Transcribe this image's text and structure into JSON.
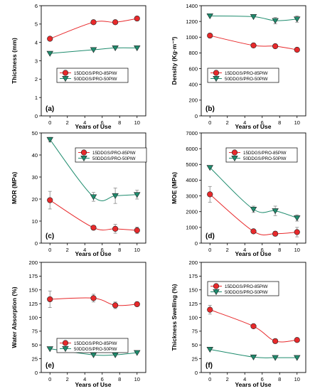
{
  "figure": {
    "xlabel": "Years of Use",
    "series_names": [
      "15DDGS/PRO-85PIW",
      "50DDGS/PRO-50PIW"
    ],
    "series_colors": [
      "#e8292b",
      "#1f8c6e"
    ]
  },
  "chart_data": [
    {
      "type": "line",
      "panel_label": "(a)",
      "ylabel": "Thickness (mm)",
      "xlabel": "Years of Use",
      "xlim": [
        -1,
        11
      ],
      "ylim": [
        0,
        6
      ],
      "xticks": [
        "0",
        "2",
        "4",
        "6",
        "8",
        "10"
      ],
      "yticks": [
        "0",
        "1",
        "2",
        "3",
        "4",
        "5",
        "6"
      ],
      "grid": false,
      "legend": "center-right",
      "series": [
        {
          "name": "15DDGS/PRO-85PIW",
          "marker": "circle",
          "color": "#e8292b",
          "x": [
            0,
            5,
            7.5,
            10
          ],
          "y": [
            4.2,
            5.1,
            5.1,
            5.3
          ]
        },
        {
          "name": "50DDGS/PRO-50PIW",
          "marker": "triangle-down",
          "color": "#1f8c6e",
          "x": [
            0,
            5,
            7.5,
            10
          ],
          "y": [
            3.4,
            3.6,
            3.7,
            3.7
          ]
        }
      ]
    },
    {
      "type": "line",
      "panel_label": "(b)",
      "ylabel": "Density (Kg·m⁻³)",
      "xlabel": "Years of Use",
      "xlim": [
        -1,
        11
      ],
      "ylim": [
        0,
        1400
      ],
      "xticks": [
        "0",
        "2",
        "4",
        "6",
        "8",
        "10"
      ],
      "yticks": [
        "0",
        "200",
        "400",
        "600",
        "800",
        "1000",
        "1200",
        "1400"
      ],
      "grid": false,
      "legend": "center-right",
      "series": [
        {
          "name": "15DDGS/PRO-85PIW",
          "marker": "circle",
          "color": "#e8292b",
          "x": [
            0,
            5,
            7.5,
            10
          ],
          "y": [
            1020,
            895,
            885,
            840
          ]
        },
        {
          "name": "50DDGS/PRO-50PIW",
          "marker": "triangle-down",
          "color": "#1f8c6e",
          "x": [
            0,
            5,
            7.5,
            10
          ],
          "y": [
            1270,
            1260,
            1210,
            1230
          ],
          "err": [
            0,
            0,
            40,
            40
          ]
        }
      ]
    },
    {
      "type": "line",
      "panel_label": "(c)",
      "ylabel": "MOR (MPa)",
      "xlabel": "Years of Use",
      "xlim": [
        -1,
        11
      ],
      "ylim": [
        0,
        50
      ],
      "xticks": [
        "0",
        "2",
        "4",
        "6",
        "8",
        "10"
      ],
      "yticks": [
        "0",
        "10",
        "20",
        "30",
        "40",
        "50"
      ],
      "grid": false,
      "legend": "top-right",
      "series": [
        {
          "name": "15DDGS/PRO-85PIW",
          "marker": "circle",
          "color": "#e8292b",
          "x": [
            0,
            5,
            7.5,
            10
          ],
          "y": [
            19.5,
            7,
            6.5,
            5.8
          ],
          "err": [
            4,
            0.5,
            2,
            1.5
          ]
        },
        {
          "name": "50DDGS/PRO-50PIW",
          "marker": "triangle-down",
          "color": "#1f8c6e",
          "x": [
            0,
            5,
            7.5,
            10
          ],
          "y": [
            47,
            21,
            21.5,
            22
          ],
          "err": [
            1,
            2,
            3.5,
            2
          ]
        }
      ]
    },
    {
      "type": "line",
      "panel_label": "(d)",
      "ylabel": "MOE (MPa)",
      "xlabel": "Years of Use",
      "xlim": [
        -1,
        11
      ],
      "ylim": [
        0,
        7000
      ],
      "xticks": [
        "0",
        "2",
        "4",
        "6",
        "8",
        "10"
      ],
      "yticks": [
        "0",
        "1000",
        "2000",
        "3000",
        "4000",
        "5000",
        "6000",
        "7000"
      ],
      "grid": false,
      "legend": "top-right",
      "series": [
        {
          "name": "15DDGS/PRO-85PIW",
          "marker": "circle",
          "color": "#e8292b",
          "x": [
            0,
            5,
            7.5,
            10
          ],
          "y": [
            3100,
            750,
            600,
            700
          ],
          "err": [
            500,
            100,
            150,
            300
          ]
        },
        {
          "name": "50DDGS/PRO-50PIW",
          "marker": "triangle-down",
          "color": "#1f8c6e",
          "x": [
            0,
            5,
            7.5,
            10
          ],
          "y": [
            4800,
            2150,
            2050,
            1600
          ],
          "err": [
            0,
            200,
            300,
            200
          ]
        }
      ]
    },
    {
      "type": "line",
      "panel_label": "(e)",
      "ylabel": "Water Absorption (%)",
      "xlabel": "Years of Use",
      "xlim": [
        -1,
        11
      ],
      "ylim": [
        0,
        200
      ],
      "xticks": [
        "0",
        "2",
        "4",
        "6",
        "8",
        "10"
      ],
      "yticks": [
        "0",
        "25",
        "50",
        "75",
        "100",
        "125",
        "150",
        "175",
        "200"
      ],
      "grid": false,
      "legend": "center-right",
      "series": [
        {
          "name": "15DDGS/PRO-85PIW",
          "marker": "circle",
          "color": "#e8292b",
          "x": [
            0,
            5,
            7.5,
            10
          ],
          "y": [
            133,
            135,
            122,
            124
          ],
          "err": [
            15,
            7,
            6,
            4
          ]
        },
        {
          "name": "50DDGS/PRO-50PIW",
          "marker": "triangle-down",
          "color": "#1f8c6e",
          "x": [
            0,
            5,
            7.5,
            10
          ],
          "y": [
            43,
            32,
            32,
            36
          ]
        }
      ]
    },
    {
      "type": "line",
      "panel_label": "(f)",
      "ylabel": "Thickness Swelling (%)",
      "xlabel": "Years of Use",
      "xlim": [
        -1,
        11
      ],
      "ylim": [
        0,
        200
      ],
      "xticks": [
        "0",
        "2",
        "4",
        "6",
        "8",
        "10"
      ],
      "yticks": [
        "0",
        "25",
        "50",
        "75",
        "100",
        "125",
        "150",
        "175",
        "200"
      ],
      "grid": false,
      "legend": "top-right",
      "series": [
        {
          "name": "15DDGS/PRO-85PIW",
          "marker": "circle",
          "color": "#e8292b",
          "x": [
            0,
            5,
            7.5,
            10
          ],
          "y": [
            114,
            84,
            57,
            59
          ],
          "err": [
            8,
            0,
            0,
            0
          ]
        },
        {
          "name": "50DDGS/PRO-50PIW",
          "marker": "triangle-down",
          "color": "#1f8c6e",
          "x": [
            0,
            5,
            7.5,
            10
          ],
          "y": [
            42,
            28,
            27,
            27
          ]
        }
      ]
    }
  ]
}
